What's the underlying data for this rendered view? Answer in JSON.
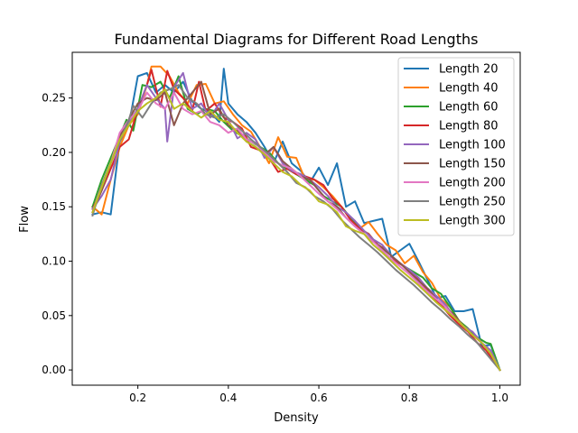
{
  "chart_data": {
    "type": "line",
    "title": "Fundamental Diagrams for Different Road Lengths",
    "xlabel": "Density",
    "ylabel": "Flow",
    "xlim": [
      0.055,
      1.045
    ],
    "ylim": [
      -0.014,
      0.292
    ],
    "xticks": [
      0.2,
      0.4,
      0.6,
      0.8,
      1.0
    ],
    "xtick_labels": [
      "0.2",
      "0.4",
      "0.6",
      "0.8",
      "1.0"
    ],
    "yticks": [
      0.0,
      0.05,
      0.1,
      0.15,
      0.2,
      0.25
    ],
    "ytick_labels": [
      "0.00",
      "0.05",
      "0.10",
      "0.15",
      "0.20",
      "0.25"
    ],
    "grid": false,
    "legend_position": "top-right",
    "series": [
      {
        "name": "Length 20",
        "color": "#1f77b4",
        "x": [
          0.1,
          0.12,
          0.14,
          0.16,
          0.18,
          0.2,
          0.22,
          0.24,
          0.26,
          0.28,
          0.3,
          0.32,
          0.34,
          0.36,
          0.38,
          0.39,
          0.4,
          0.42,
          0.44,
          0.46,
          0.48,
          0.5,
          0.52,
          0.54,
          0.56,
          0.58,
          0.6,
          0.62,
          0.64,
          0.66,
          0.68,
          0.7,
          0.72,
          0.74,
          0.76,
          0.78,
          0.8,
          0.82,
          0.84,
          0.86,
          0.88,
          0.9,
          0.92,
          0.94,
          0.96,
          0.98,
          1.0
        ],
        "y": [
          0.143,
          0.145,
          0.143,
          0.21,
          0.225,
          0.27,
          0.273,
          0.255,
          0.262,
          0.255,
          0.265,
          0.247,
          0.24,
          0.237,
          0.228,
          0.277,
          0.245,
          0.235,
          0.228,
          0.218,
          0.205,
          0.19,
          0.21,
          0.19,
          0.183,
          0.172,
          0.186,
          0.17,
          0.19,
          0.15,
          0.155,
          0.135,
          0.137,
          0.139,
          0.104,
          0.11,
          0.116,
          0.1,
          0.083,
          0.066,
          0.068,
          0.054,
          0.054,
          0.056,
          0.022,
          0.023,
          0.0
        ]
      },
      {
        "name": "Length 40",
        "color": "#ff7f0e",
        "x": [
          0.1,
          0.12,
          0.14,
          0.16,
          0.18,
          0.2,
          0.22,
          0.23,
          0.25,
          0.27,
          0.29,
          0.31,
          0.33,
          0.35,
          0.37,
          0.39,
          0.41,
          0.43,
          0.45,
          0.47,
          0.49,
          0.51,
          0.53,
          0.55,
          0.57,
          0.59,
          0.61,
          0.63,
          0.65,
          0.67,
          0.69,
          0.71,
          0.73,
          0.75,
          0.77,
          0.79,
          0.81,
          0.83,
          0.85,
          0.87,
          0.89,
          0.91,
          0.93,
          0.95,
          0.97,
          1.0
        ],
        "y": [
          0.15,
          0.143,
          0.175,
          0.205,
          0.225,
          0.235,
          0.262,
          0.279,
          0.279,
          0.27,
          0.255,
          0.245,
          0.262,
          0.263,
          0.245,
          0.247,
          0.235,
          0.225,
          0.219,
          0.205,
          0.19,
          0.214,
          0.196,
          0.195,
          0.175,
          0.175,
          0.168,
          0.16,
          0.15,
          0.14,
          0.13,
          0.136,
          0.125,
          0.115,
          0.11,
          0.098,
          0.105,
          0.09,
          0.08,
          0.065,
          0.058,
          0.045,
          0.038,
          0.03,
          0.02,
          0.0
        ]
      },
      {
        "name": "Length 60",
        "color": "#2ca02c",
        "x": [
          0.1,
          0.12,
          0.14,
          0.16,
          0.175,
          0.19,
          0.21,
          0.23,
          0.25,
          0.27,
          0.29,
          0.31,
          0.33,
          0.35,
          0.37,
          0.39,
          0.41,
          0.43,
          0.45,
          0.47,
          0.49,
          0.51,
          0.53,
          0.55,
          0.57,
          0.59,
          0.61,
          0.63,
          0.65,
          0.67,
          0.69,
          0.71,
          0.73,
          0.75,
          0.77,
          0.79,
          0.81,
          0.83,
          0.85,
          0.87,
          0.89,
          0.91,
          0.93,
          0.95,
          0.97,
          0.98,
          1.0
        ],
        "y": [
          0.15,
          0.175,
          0.195,
          0.215,
          0.23,
          0.22,
          0.262,
          0.26,
          0.265,
          0.25,
          0.27,
          0.24,
          0.235,
          0.24,
          0.238,
          0.228,
          0.22,
          0.215,
          0.21,
          0.205,
          0.2,
          0.19,
          0.185,
          0.18,
          0.175,
          0.17,
          0.16,
          0.155,
          0.15,
          0.14,
          0.13,
          0.125,
          0.115,
          0.11,
          0.1,
          0.095,
          0.09,
          0.085,
          0.075,
          0.07,
          0.058,
          0.045,
          0.038,
          0.03,
          0.025,
          0.024,
          0.0
        ]
      },
      {
        "name": "Length 80",
        "color": "#d62728",
        "x": [
          0.1,
          0.12,
          0.14,
          0.16,
          0.18,
          0.2,
          0.22,
          0.23,
          0.25,
          0.265,
          0.28,
          0.3,
          0.32,
          0.335,
          0.35,
          0.37,
          0.39,
          0.41,
          0.43,
          0.45,
          0.47,
          0.49,
          0.51,
          0.53,
          0.55,
          0.57,
          0.59,
          0.61,
          0.63,
          0.65,
          0.67,
          0.69,
          0.71,
          0.73,
          0.75,
          0.77,
          0.79,
          0.81,
          0.83,
          0.85,
          0.87,
          0.89,
          0.91,
          0.93,
          0.95,
          0.97,
          1.0
        ],
        "y": [
          0.148,
          0.165,
          0.185,
          0.205,
          0.212,
          0.24,
          0.262,
          0.276,
          0.242,
          0.275,
          0.258,
          0.25,
          0.238,
          0.265,
          0.238,
          0.245,
          0.232,
          0.228,
          0.222,
          0.205,
          0.202,
          0.195,
          0.182,
          0.185,
          0.18,
          0.178,
          0.175,
          0.17,
          0.158,
          0.15,
          0.138,
          0.13,
          0.125,
          0.115,
          0.11,
          0.1,
          0.095,
          0.088,
          0.078,
          0.068,
          0.06,
          0.05,
          0.042,
          0.035,
          0.025,
          0.018,
          0.0
        ]
      },
      {
        "name": "Length 100",
        "color": "#9467bd",
        "x": [
          0.1,
          0.12,
          0.14,
          0.16,
          0.18,
          0.2,
          0.22,
          0.24,
          0.26,
          0.265,
          0.28,
          0.3,
          0.32,
          0.34,
          0.36,
          0.38,
          0.4,
          0.42,
          0.44,
          0.46,
          0.48,
          0.5,
          0.52,
          0.54,
          0.56,
          0.58,
          0.6,
          0.62,
          0.64,
          0.66,
          0.68,
          0.7,
          0.72,
          0.74,
          0.76,
          0.78,
          0.8,
          0.82,
          0.84,
          0.86,
          0.88,
          0.9,
          0.92,
          0.94,
          0.96,
          0.98,
          1.0
        ],
        "y": [
          0.148,
          0.16,
          0.175,
          0.21,
          0.228,
          0.24,
          0.262,
          0.25,
          0.24,
          0.21,
          0.26,
          0.273,
          0.24,
          0.245,
          0.232,
          0.245,
          0.23,
          0.213,
          0.218,
          0.212,
          0.195,
          0.205,
          0.19,
          0.183,
          0.18,
          0.175,
          0.168,
          0.16,
          0.15,
          0.145,
          0.137,
          0.128,
          0.12,
          0.115,
          0.105,
          0.098,
          0.092,
          0.085,
          0.075,
          0.068,
          0.06,
          0.048,
          0.04,
          0.035,
          0.025,
          0.018,
          0.0
        ]
      },
      {
        "name": "Length 150",
        "color": "#8c564b",
        "x": [
          0.1,
          0.12,
          0.14,
          0.16,
          0.18,
          0.2,
          0.22,
          0.24,
          0.26,
          0.28,
          0.3,
          0.32,
          0.34,
          0.36,
          0.38,
          0.4,
          0.42,
          0.44,
          0.46,
          0.48,
          0.5,
          0.52,
          0.54,
          0.56,
          0.58,
          0.6,
          0.62,
          0.64,
          0.66,
          0.68,
          0.7,
          0.72,
          0.74,
          0.76,
          0.78,
          0.8,
          0.82,
          0.84,
          0.86,
          0.88,
          0.9,
          0.92,
          0.94,
          0.96,
          0.98,
          1.0
        ],
        "y": [
          0.145,
          0.165,
          0.19,
          0.215,
          0.23,
          0.245,
          0.25,
          0.248,
          0.255,
          0.225,
          0.245,
          0.255,
          0.265,
          0.235,
          0.24,
          0.225,
          0.22,
          0.21,
          0.205,
          0.198,
          0.205,
          0.192,
          0.185,
          0.178,
          0.175,
          0.165,
          0.155,
          0.15,
          0.14,
          0.132,
          0.125,
          0.118,
          0.112,
          0.105,
          0.098,
          0.09,
          0.082,
          0.075,
          0.065,
          0.058,
          0.05,
          0.04,
          0.032,
          0.025,
          0.015,
          0.0
        ]
      },
      {
        "name": "Length 200",
        "color": "#e377c2",
        "x": [
          0.1,
          0.12,
          0.14,
          0.16,
          0.18,
          0.2,
          0.22,
          0.24,
          0.26,
          0.28,
          0.3,
          0.32,
          0.34,
          0.36,
          0.38,
          0.4,
          0.42,
          0.44,
          0.46,
          0.48,
          0.5,
          0.52,
          0.54,
          0.56,
          0.58,
          0.6,
          0.62,
          0.64,
          0.66,
          0.68,
          0.7,
          0.72,
          0.74,
          0.76,
          0.78,
          0.8,
          0.82,
          0.84,
          0.86,
          0.88,
          0.9,
          0.92,
          0.94,
          0.96,
          0.98,
          1.0
        ],
        "y": [
          0.145,
          0.17,
          0.19,
          0.218,
          0.23,
          0.238,
          0.255,
          0.245,
          0.24,
          0.255,
          0.24,
          0.235,
          0.238,
          0.228,
          0.225,
          0.218,
          0.222,
          0.212,
          0.208,
          0.2,
          0.192,
          0.188,
          0.185,
          0.178,
          0.17,
          0.162,
          0.155,
          0.148,
          0.14,
          0.132,
          0.125,
          0.118,
          0.11,
          0.102,
          0.095,
          0.088,
          0.08,
          0.072,
          0.065,
          0.058,
          0.048,
          0.04,
          0.032,
          0.025,
          0.015,
          0.0
        ]
      },
      {
        "name": "Length 250",
        "color": "#7f7f7f",
        "x": [
          0.1,
          0.12,
          0.14,
          0.16,
          0.18,
          0.19,
          0.21,
          0.23,
          0.25,
          0.27,
          0.29,
          0.31,
          0.33,
          0.35,
          0.37,
          0.39,
          0.41,
          0.43,
          0.45,
          0.47,
          0.49,
          0.51,
          0.53,
          0.55,
          0.57,
          0.59,
          0.61,
          0.63,
          0.65,
          0.67,
          0.69,
          0.71,
          0.73,
          0.75,
          0.77,
          0.79,
          0.81,
          0.83,
          0.85,
          0.87,
          0.89,
          0.91,
          0.93,
          0.95,
          0.97,
          1.0
        ],
        "y": [
          0.142,
          0.17,
          0.19,
          0.21,
          0.23,
          0.243,
          0.232,
          0.245,
          0.255,
          0.258,
          0.262,
          0.25,
          0.245,
          0.235,
          0.232,
          0.235,
          0.228,
          0.22,
          0.212,
          0.205,
          0.198,
          0.19,
          0.182,
          0.172,
          0.168,
          0.16,
          0.155,
          0.148,
          0.138,
          0.13,
          0.122,
          0.115,
          0.108,
          0.1,
          0.092,
          0.085,
          0.078,
          0.07,
          0.062,
          0.055,
          0.047,
          0.04,
          0.032,
          0.025,
          0.015,
          0.0
        ]
      },
      {
        "name": "Length 300",
        "color": "#bcbd22",
        "x": [
          0.1,
          0.12,
          0.14,
          0.16,
          0.18,
          0.2,
          0.22,
          0.24,
          0.26,
          0.28,
          0.3,
          0.32,
          0.34,
          0.36,
          0.38,
          0.4,
          0.42,
          0.44,
          0.46,
          0.48,
          0.5,
          0.52,
          0.54,
          0.56,
          0.58,
          0.6,
          0.62,
          0.64,
          0.66,
          0.68,
          0.7,
          0.72,
          0.74,
          0.76,
          0.78,
          0.8,
          0.82,
          0.84,
          0.86,
          0.88,
          0.9,
          0.92,
          0.94,
          0.96,
          0.98,
          1.0
        ],
        "y": [
          0.145,
          0.168,
          0.19,
          0.212,
          0.225,
          0.238,
          0.245,
          0.25,
          0.258,
          0.24,
          0.245,
          0.238,
          0.232,
          0.238,
          0.23,
          0.228,
          0.218,
          0.21,
          0.205,
          0.198,
          0.19,
          0.182,
          0.178,
          0.17,
          0.165,
          0.155,
          0.152,
          0.145,
          0.132,
          0.128,
          0.125,
          0.115,
          0.108,
          0.1,
          0.092,
          0.085,
          0.078,
          0.07,
          0.062,
          0.055,
          0.048,
          0.04,
          0.032,
          0.025,
          0.015,
          0.0
        ]
      }
    ]
  }
}
